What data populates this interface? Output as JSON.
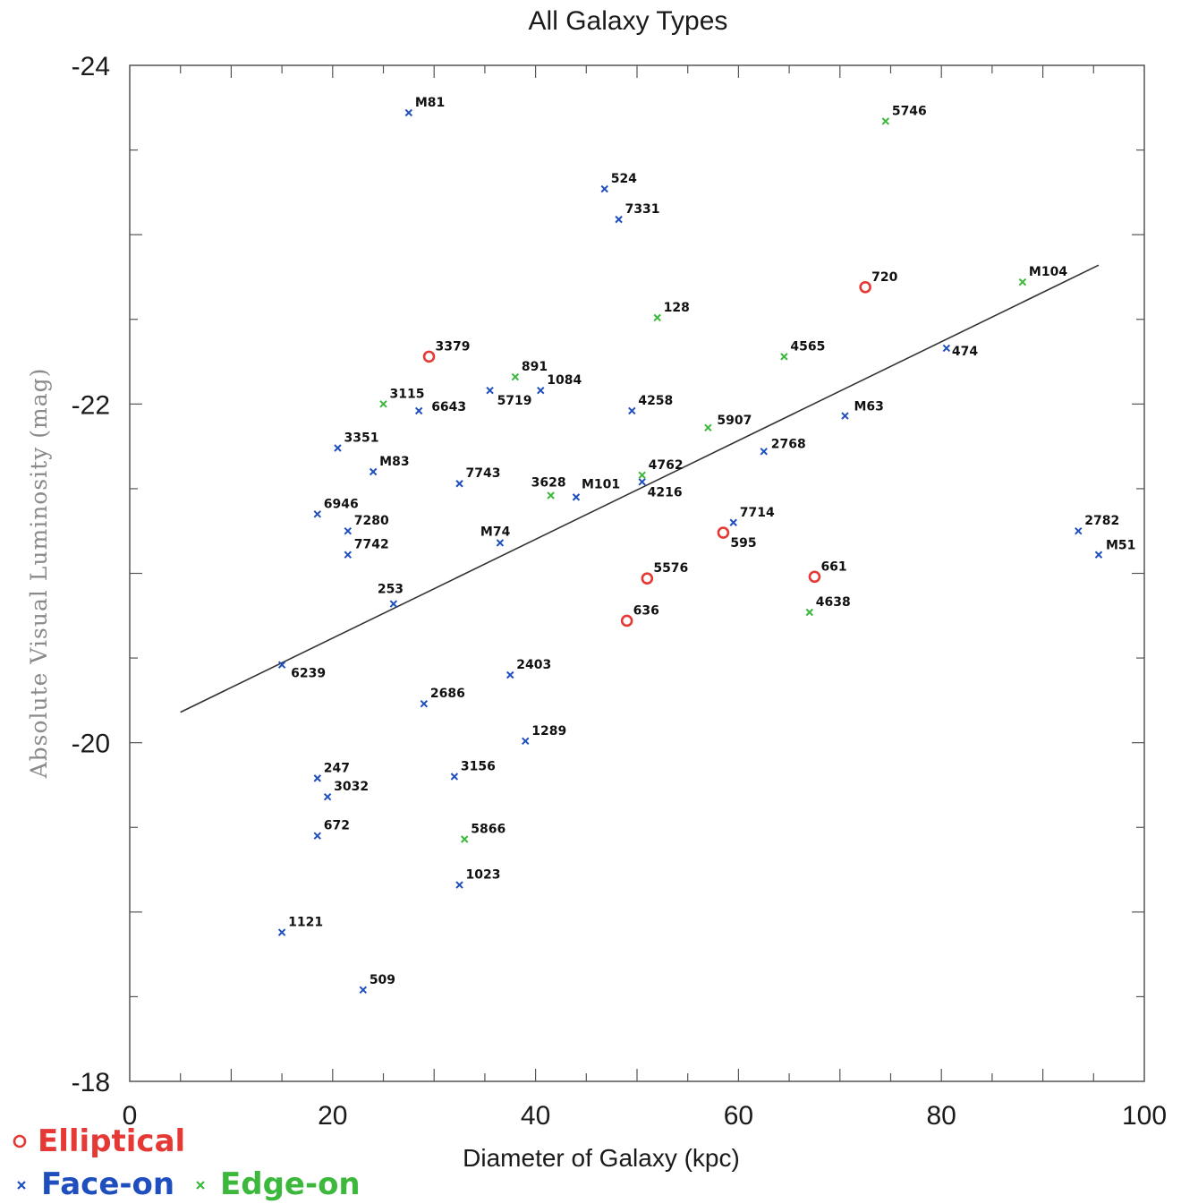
{
  "chart_data": {
    "type": "scatter",
    "title": "All Galaxy Types",
    "xlabel": "Diameter of Galaxy (kpc)",
    "ylabel": "Absolute Visual Luminosity (mag)",
    "xlim": [
      0,
      100
    ],
    "ylim": [
      -18,
      -24
    ],
    "x_ticks": [
      0,
      20,
      40,
      60,
      80,
      100
    ],
    "x_tick_labels": [
      "0",
      "20",
      "40",
      "60",
      "80",
      "100"
    ],
    "y_ticks": [
      -24,
      -22,
      -20,
      -18
    ],
    "y_tick_labels": [
      "-24",
      "-22",
      "-20",
      "-18"
    ],
    "grid": false,
    "legend_position": "bottom-left",
    "fit_line": {
      "x": [
        5,
        95.5
      ],
      "y": [
        -20.18,
        -22.82
      ],
      "color": "#333333"
    },
    "series": [
      {
        "name": "Elliptical",
        "marker": "circle",
        "color": "#e53935",
        "points": [
          {
            "label": "3379",
            "x": 29.5,
            "y": -22.28
          },
          {
            "label": "720",
            "x": 72.5,
            "y": -22.69
          },
          {
            "label": "5576",
            "x": 51.0,
            "y": -20.97
          },
          {
            "label": "636",
            "x": 49.0,
            "y": -20.72
          },
          {
            "label": "595",
            "x": 58.5,
            "y": -21.24
          },
          {
            "label": "661",
            "x": 67.5,
            "y": -20.98
          }
        ]
      },
      {
        "name": "Face-on",
        "marker": "x",
        "color": "#1f4fbf",
        "points": [
          {
            "label": "M81",
            "x": 27.5,
            "y": -23.72
          },
          {
            "label": "524",
            "x": 46.8,
            "y": -23.27
          },
          {
            "label": "7331",
            "x": 48.2,
            "y": -23.09
          },
          {
            "label": "474",
            "x": 80.5,
            "y": -22.33
          },
          {
            "label": "5719",
            "x": 35.5,
            "y": -22.08
          },
          {
            "label": "1084",
            "x": 40.5,
            "y": -22.08
          },
          {
            "label": "6643",
            "x": 28.5,
            "y": -21.96
          },
          {
            "label": "4258",
            "x": 49.5,
            "y": -21.96
          },
          {
            "label": "M63",
            "x": 70.5,
            "y": -21.93
          },
          {
            "label": "3351",
            "x": 20.5,
            "y": -21.74
          },
          {
            "label": "2768",
            "x": 62.5,
            "y": -21.72
          },
          {
            "label": "M83",
            "x": 24.0,
            "y": -21.6
          },
          {
            "label": "7743",
            "x": 32.5,
            "y": -21.53
          },
          {
            "label": "4216",
            "x": 50.5,
            "y": -21.54
          },
          {
            "label": "M101",
            "x": 44.0,
            "y": -21.45
          },
          {
            "label": "6946",
            "x": 18.5,
            "y": -21.35
          },
          {
            "label": "7714",
            "x": 59.5,
            "y": -21.3
          },
          {
            "label": "7280",
            "x": 21.5,
            "y": -21.25
          },
          {
            "label": "2782",
            "x": 93.5,
            "y": -21.25
          },
          {
            "label": "M74",
            "x": 36.5,
            "y": -21.18
          },
          {
            "label": "7742",
            "x": 21.5,
            "y": -21.11
          },
          {
            "label": "M51",
            "x": 95.5,
            "y": -21.11
          },
          {
            "label": "253",
            "x": 26.0,
            "y": -20.82
          },
          {
            "label": "6239",
            "x": 15.0,
            "y": -20.46
          },
          {
            "label": "2403",
            "x": 37.5,
            "y": -20.4
          },
          {
            "label": "2686",
            "x": 29.0,
            "y": -20.23
          },
          {
            "label": "1289",
            "x": 39.0,
            "y": -20.01
          },
          {
            "label": "247",
            "x": 18.5,
            "y": -19.79
          },
          {
            "label": "3156",
            "x": 32.0,
            "y": -19.8
          },
          {
            "label": "3032",
            "x": 19.5,
            "y": -19.68
          },
          {
            "label": "672",
            "x": 18.5,
            "y": -19.45
          },
          {
            "label": "1023",
            "x": 32.5,
            "y": -19.16
          },
          {
            "label": "1121",
            "x": 15.0,
            "y": -18.88
          },
          {
            "label": "509",
            "x": 23.0,
            "y": -18.54
          }
        ]
      },
      {
        "name": "Edge-on",
        "marker": "x",
        "color": "#3cb83c",
        "points": [
          {
            "label": "5746",
            "x": 74.5,
            "y": -23.67
          },
          {
            "label": "M104",
            "x": 88.0,
            "y": -22.72
          },
          {
            "label": "128",
            "x": 52.0,
            "y": -22.51
          },
          {
            "label": "4565",
            "x": 64.5,
            "y": -22.28
          },
          {
            "label": "891",
            "x": 38.0,
            "y": -22.16
          },
          {
            "label": "3115",
            "x": 25.0,
            "y": -22.0
          },
          {
            "label": "5907",
            "x": 57.0,
            "y": -21.86
          },
          {
            "label": "4762",
            "x": 50.5,
            "y": -21.58
          },
          {
            "label": "3628",
            "x": 41.5,
            "y": -21.46
          },
          {
            "label": "4638",
            "x": 67.0,
            "y": -20.77
          },
          {
            "label": "5866",
            "x": 33.0,
            "y": -19.43
          }
        ]
      }
    ]
  }
}
